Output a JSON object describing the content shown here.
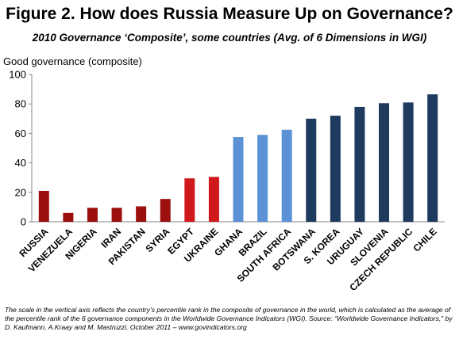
{
  "title": "Figure 2.  How does Russia Measure Up on Governance?",
  "subtitle": "2010 Governance ‘Composite’, some countries (Avg. of 6 Dimensions in WGI)",
  "footnote": "The scale in the vertical axis reflects the country’s percentile rank in the composite of governance in the world, which is calculated as the average of the percentile rank of the 6 governance components in the Worldwide Governance Indicators (WGI).  Source:  “Worldwide Governance Indicators,” by D. Kaufmann, A.Kraay and M. Mastruzzi, October 2011 – www.govindicators.org",
  "colors": {
    "dark_red": "#9c0f0f",
    "red": "#d0191c",
    "light_blue": "#5b92d6",
    "navy": "#1f3a5f"
  },
  "chart_data": {
    "type": "bar",
    "title": "Figure 2.  How does Russia Measure Up on Governance?",
    "subtitle": "2010 Governance ‘Composite’, some countries (Avg. of 6 Dimensions in WGI)",
    "ylabel": "Good governance (composite)",
    "xlabel": "",
    "ylim": [
      0,
      100
    ],
    "yticks": [
      0,
      20,
      40,
      60,
      80,
      100
    ],
    "grid": false,
    "legend": "none",
    "categories": [
      "RUSSIA",
      "VENEZUELA",
      "NIGERIA",
      "IRAN",
      "PAKISTAN",
      "SYRIA",
      "EGYPT",
      "UKRAINE",
      "GHANA",
      "BRAZIL",
      "SOUTH AFRICA",
      "BOTSWANA",
      "S. KOREA",
      "URUGUAY",
      "SLOVENIA",
      "CZECH REPUBLIC",
      "CHILE"
    ],
    "values": [
      21,
      6,
      9.5,
      9.5,
      10.5,
      15.5,
      29.5,
      30.5,
      57.5,
      59,
      62.5,
      70,
      72,
      78,
      80.5,
      81,
      86.5
    ],
    "bar_colors": [
      "#9c0f0f",
      "#9c0f0f",
      "#9c0f0f",
      "#9c0f0f",
      "#9c0f0f",
      "#9c0f0f",
      "#d0191c",
      "#d0191c",
      "#5b92d6",
      "#5b92d6",
      "#5b92d6",
      "#1f3a5f",
      "#1f3a5f",
      "#1f3a5f",
      "#1f3a5f",
      "#1f3a5f",
      "#1f3a5f"
    ]
  }
}
